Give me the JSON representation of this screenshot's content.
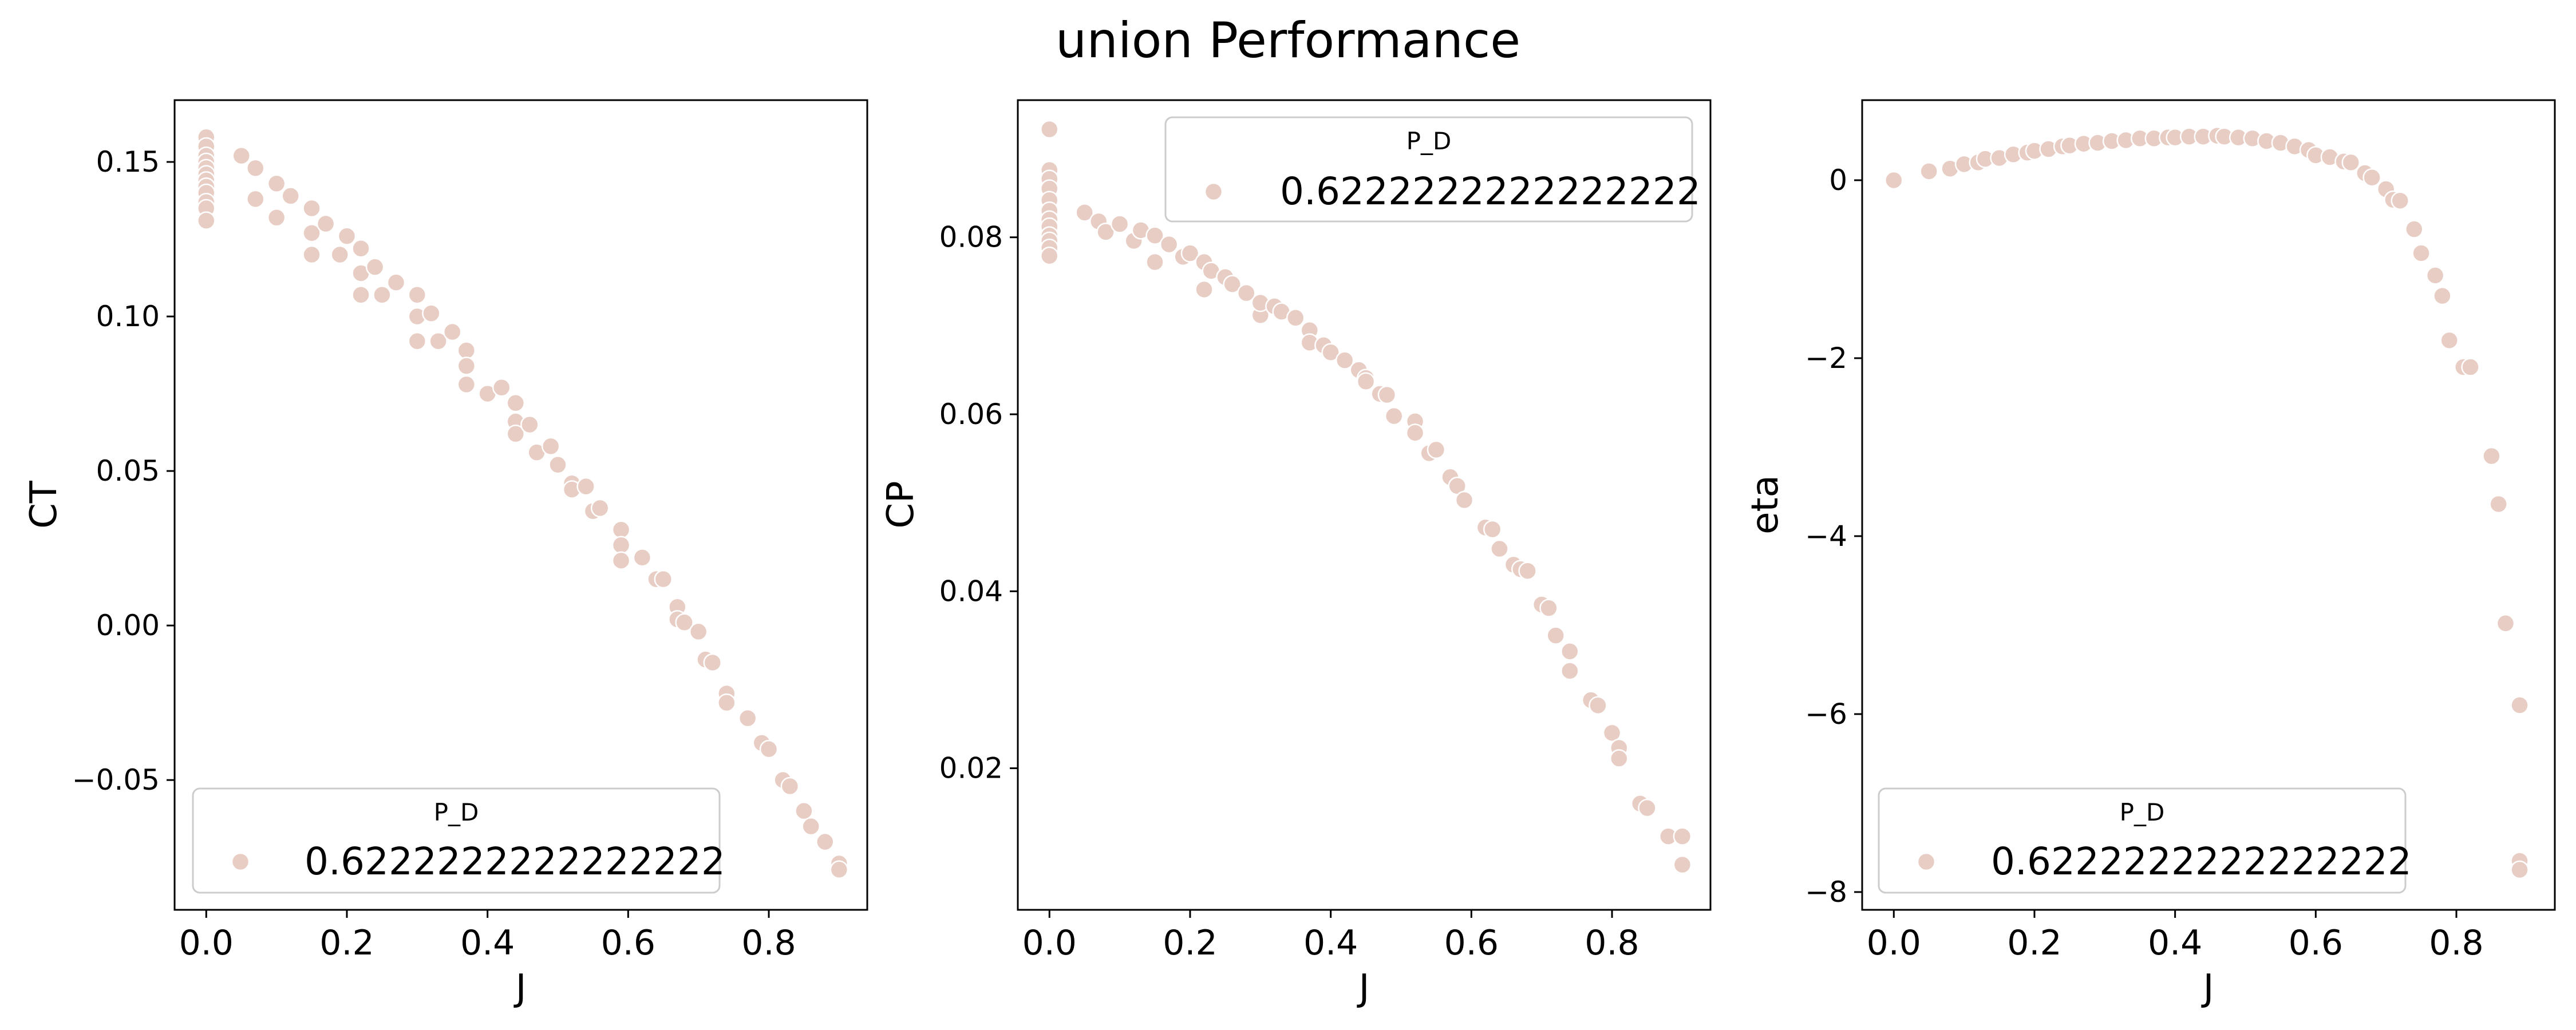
{
  "figure": {
    "title": "union Performance"
  },
  "colors": {
    "marker_fill": "#e8cdc4",
    "marker_edge": "#ffffff",
    "axes": "#000000",
    "legend_border": "#cccccc"
  },
  "chart_data": [
    {
      "type": "scatter",
      "xlabel": "J",
      "ylabel": "CT",
      "xlim": [
        -0.045,
        0.94
      ],
      "ylim": [
        -0.092,
        0.17
      ],
      "xticks": [
        0.0,
        0.2,
        0.4,
        0.6,
        0.8
      ],
      "xtick_labels": [
        "0.0",
        "0.2",
        "0.4",
        "0.6",
        "0.8"
      ],
      "yticks": [
        -0.05,
        0.0,
        0.05,
        0.1,
        0.15
      ],
      "ytick_labels": [
        "−0.05",
        "0.00",
        "0.05",
        "0.10",
        "0.15"
      ],
      "grid": false,
      "legend": {
        "title": "P_D",
        "entries": [
          "0.6222222222222222"
        ],
        "placement": "lower-left"
      },
      "series": [
        {
          "name": "0.6222222222222222",
          "x": [
            0,
            0,
            0,
            0,
            0,
            0,
            0,
            0,
            0,
            0,
            0,
            0,
            0.05,
            0.07,
            0.07,
            0.1,
            0.1,
            0.12,
            0.15,
            0.15,
            0.15,
            0.17,
            0.19,
            0.2,
            0.22,
            0.22,
            0.22,
            0.24,
            0.25,
            0.27,
            0.3,
            0.3,
            0.3,
            0.32,
            0.33,
            0.35,
            0.37,
            0.37,
            0.37,
            0.4,
            0.42,
            0.44,
            0.44,
            0.44,
            0.46,
            0.47,
            0.49,
            0.5,
            0.52,
            0.52,
            0.54,
            0.55,
            0.56,
            0.59,
            0.59,
            0.59,
            0.62,
            0.64,
            0.65,
            0.67,
            0.67,
            0.68,
            0.7,
            0.71,
            0.72,
            0.74,
            0.74,
            0.77,
            0.79,
            0.8,
            0.82,
            0.83,
            0.85,
            0.86,
            0.88,
            0.9,
            0.9
          ],
          "y": [
            0.158,
            0.155,
            0.152,
            0.15,
            0.148,
            0.146,
            0.144,
            0.142,
            0.14,
            0.137,
            0.135,
            0.131,
            0.152,
            0.148,
            0.138,
            0.143,
            0.132,
            0.139,
            0.135,
            0.127,
            0.12,
            0.13,
            0.12,
            0.126,
            0.122,
            0.114,
            0.107,
            0.116,
            0.107,
            0.111,
            0.107,
            0.1,
            0.092,
            0.101,
            0.092,
            0.095,
            0.089,
            0.084,
            0.078,
            0.075,
            0.077,
            0.072,
            0.066,
            0.062,
            0.065,
            0.056,
            0.058,
            0.052,
            0.046,
            0.044,
            0.045,
            0.037,
            0.038,
            0.031,
            0.026,
            0.021,
            0.022,
            0.015,
            0.015,
            0.006,
            0.002,
            0.001,
            -0.002,
            -0.011,
            -0.012,
            -0.022,
            -0.025,
            -0.03,
            -0.038,
            -0.04,
            -0.05,
            -0.052,
            -0.06,
            -0.065,
            -0.07,
            -0.077,
            -0.079
          ]
        }
      ]
    },
    {
      "type": "scatter",
      "xlabel": "J",
      "ylabel": "CP",
      "xlim": [
        -0.045,
        0.94
      ],
      "ylim": [
        0.004,
        0.0955
      ],
      "xticks": [
        0.0,
        0.2,
        0.4,
        0.6,
        0.8
      ],
      "xtick_labels": [
        "0.0",
        "0.2",
        "0.4",
        "0.6",
        "0.8"
      ],
      "yticks": [
        0.02,
        0.04,
        0.06,
        0.08
      ],
      "ytick_labels": [
        "0.02",
        "0.04",
        "0.06",
        "0.08"
      ],
      "grid": false,
      "legend": {
        "title": "P_D",
        "entries": [
          "0.6222222222222222"
        ],
        "placement": "upper-right"
      },
      "series": [
        {
          "name": "0.6222222222222222",
          "x": [
            0,
            0,
            0,
            0,
            0,
            0,
            0,
            0,
            0,
            0,
            0,
            0,
            0.05,
            0.07,
            0.08,
            0.1,
            0.12,
            0.13,
            0.15,
            0.15,
            0.17,
            0.19,
            0.2,
            0.22,
            0.22,
            0.23,
            0.25,
            0.26,
            0.28,
            0.3,
            0.3,
            0.32,
            0.33,
            0.35,
            0.37,
            0.37,
            0.39,
            0.4,
            0.42,
            0.44,
            0.45,
            0.45,
            0.47,
            0.48,
            0.49,
            0.52,
            0.52,
            0.54,
            0.55,
            0.57,
            0.58,
            0.59,
            0.62,
            0.63,
            0.64,
            0.66,
            0.67,
            0.68,
            0.7,
            0.71,
            0.72,
            0.74,
            0.74,
            0.77,
            0.78,
            0.8,
            0.81,
            0.81,
            0.84,
            0.85,
            0.88,
            0.9,
            0.9
          ],
          "y": [
            0.0922,
            0.0876,
            0.0866,
            0.0855,
            0.0842,
            0.083,
            0.082,
            0.0812,
            0.0802,
            0.0796,
            0.0788,
            0.0779,
            0.0828,
            0.0818,
            0.0806,
            0.0815,
            0.0796,
            0.0808,
            0.0802,
            0.0772,
            0.0792,
            0.0778,
            0.0782,
            0.0772,
            0.0741,
            0.0762,
            0.0755,
            0.0747,
            0.0737,
            0.0712,
            0.0726,
            0.0722,
            0.0716,
            0.0709,
            0.0695,
            0.0681,
            0.0678,
            0.067,
            0.0661,
            0.065,
            0.0641,
            0.0637,
            0.0623,
            0.0622,
            0.0598,
            0.0592,
            0.0579,
            0.0556,
            0.056,
            0.0529,
            0.0519,
            0.0503,
            0.0472,
            0.047,
            0.0448,
            0.043,
            0.0425,
            0.0423,
            0.0385,
            0.0381,
            0.035,
            0.0332,
            0.031,
            0.0277,
            0.0271,
            0.024,
            0.0223,
            0.0211,
            0.016,
            0.0155,
            0.0123,
            0.0123,
            0.0091
          ]
        }
      ]
    },
    {
      "type": "scatter",
      "xlabel": "J",
      "ylabel": "eta",
      "xlim": [
        -0.045,
        0.94
      ],
      "ylim": [
        -8.2,
        0.9
      ],
      "xticks": [
        0.0,
        0.2,
        0.4,
        0.6,
        0.8
      ],
      "xtick_labels": [
        "0.0",
        "0.2",
        "0.4",
        "0.6",
        "0.8"
      ],
      "yticks": [
        -8,
        -6,
        -4,
        -2,
        0
      ],
      "ytick_labels": [
        "−8",
        "−6",
        "−4",
        "−2",
        "0"
      ],
      "grid": false,
      "legend": {
        "title": "P_D",
        "entries": [
          "0.6222222222222222"
        ],
        "placement": "lower-left"
      },
      "series": [
        {
          "name": "0.6222222222222222",
          "x": [
            0,
            0.05,
            0.08,
            0.1,
            0.12,
            0.13,
            0.15,
            0.17,
            0.19,
            0.2,
            0.22,
            0.24,
            0.25,
            0.27,
            0.29,
            0.31,
            0.33,
            0.35,
            0.37,
            0.39,
            0.4,
            0.42,
            0.44,
            0.46,
            0.47,
            0.49,
            0.51,
            0.53,
            0.55,
            0.57,
            0.59,
            0.6,
            0.62,
            0.64,
            0.65,
            0.67,
            0.68,
            0.7,
            0.71,
            0.72,
            0.74,
            0.75,
            0.77,
            0.78,
            0.79,
            0.81,
            0.82,
            0.85,
            0.86,
            0.87,
            0.89,
            0.89,
            0.89
          ],
          "y": [
            0.0,
            0.1,
            0.13,
            0.18,
            0.2,
            0.24,
            0.25,
            0.29,
            0.31,
            0.33,
            0.35,
            0.38,
            0.39,
            0.41,
            0.42,
            0.44,
            0.45,
            0.47,
            0.47,
            0.48,
            0.48,
            0.49,
            0.49,
            0.5,
            0.49,
            0.48,
            0.47,
            0.44,
            0.42,
            0.38,
            0.34,
            0.28,
            0.26,
            0.21,
            0.2,
            0.08,
            0.03,
            -0.1,
            -0.22,
            -0.23,
            -0.55,
            -0.82,
            -1.07,
            -1.3,
            -1.8,
            -2.1,
            -2.1,
            -3.1,
            -3.64,
            -4.98,
            -5.9,
            -7.65,
            -7.75
          ]
        }
      ]
    }
  ]
}
